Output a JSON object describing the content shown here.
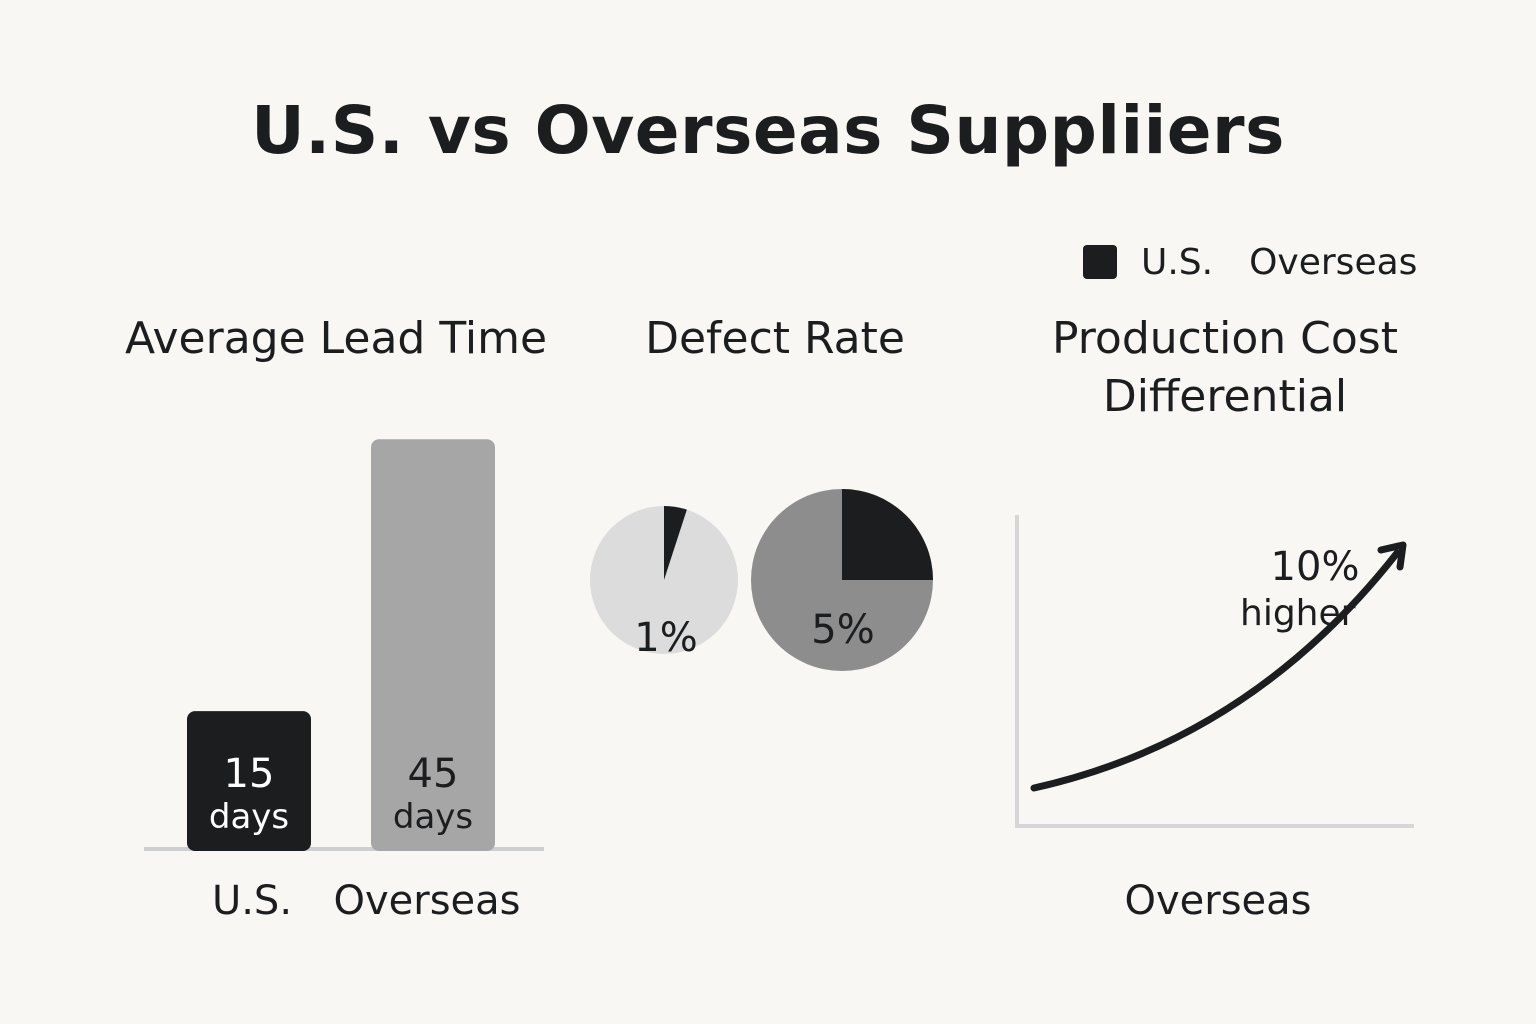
{
  "title": "U.S. vs Overseas Suppliiers",
  "legend": {
    "items": [
      {
        "label": "U.S.",
        "color": "#1b1d1f"
      },
      {
        "label": "Overseas",
        "color": "#f8f7f4"
      }
    ]
  },
  "chart_data": [
    {
      "type": "bar",
      "title": "Average Lead Time",
      "categories": [
        "U.S.",
        "Overseas"
      ],
      "values": [
        15,
        45
      ],
      "value_labels": [
        {
          "number": "15",
          "unit": "days"
        },
        {
          "number": "45",
          "unit": "days"
        }
      ],
      "colors": [
        "#1b1d1f",
        "#a6a6a6"
      ],
      "ylim": [
        0,
        50
      ],
      "grid": false
    },
    {
      "type": "pie",
      "title": "Defect Rate",
      "pies": [
        {
          "label": "1%",
          "value": 1,
          "slice_color": "#1b1d1f",
          "base_color": "#dcdcdc"
        },
        {
          "label": "5%",
          "value": 5,
          "slice_color": "#1b1d1f",
          "base_color": "#8d8d8d"
        }
      ]
    },
    {
      "type": "line",
      "title": "Production Cost Differential",
      "xlabel": "Overseas",
      "annotation": {
        "value": "10%",
        "text": "higher"
      },
      "trend": "rising"
    }
  ]
}
